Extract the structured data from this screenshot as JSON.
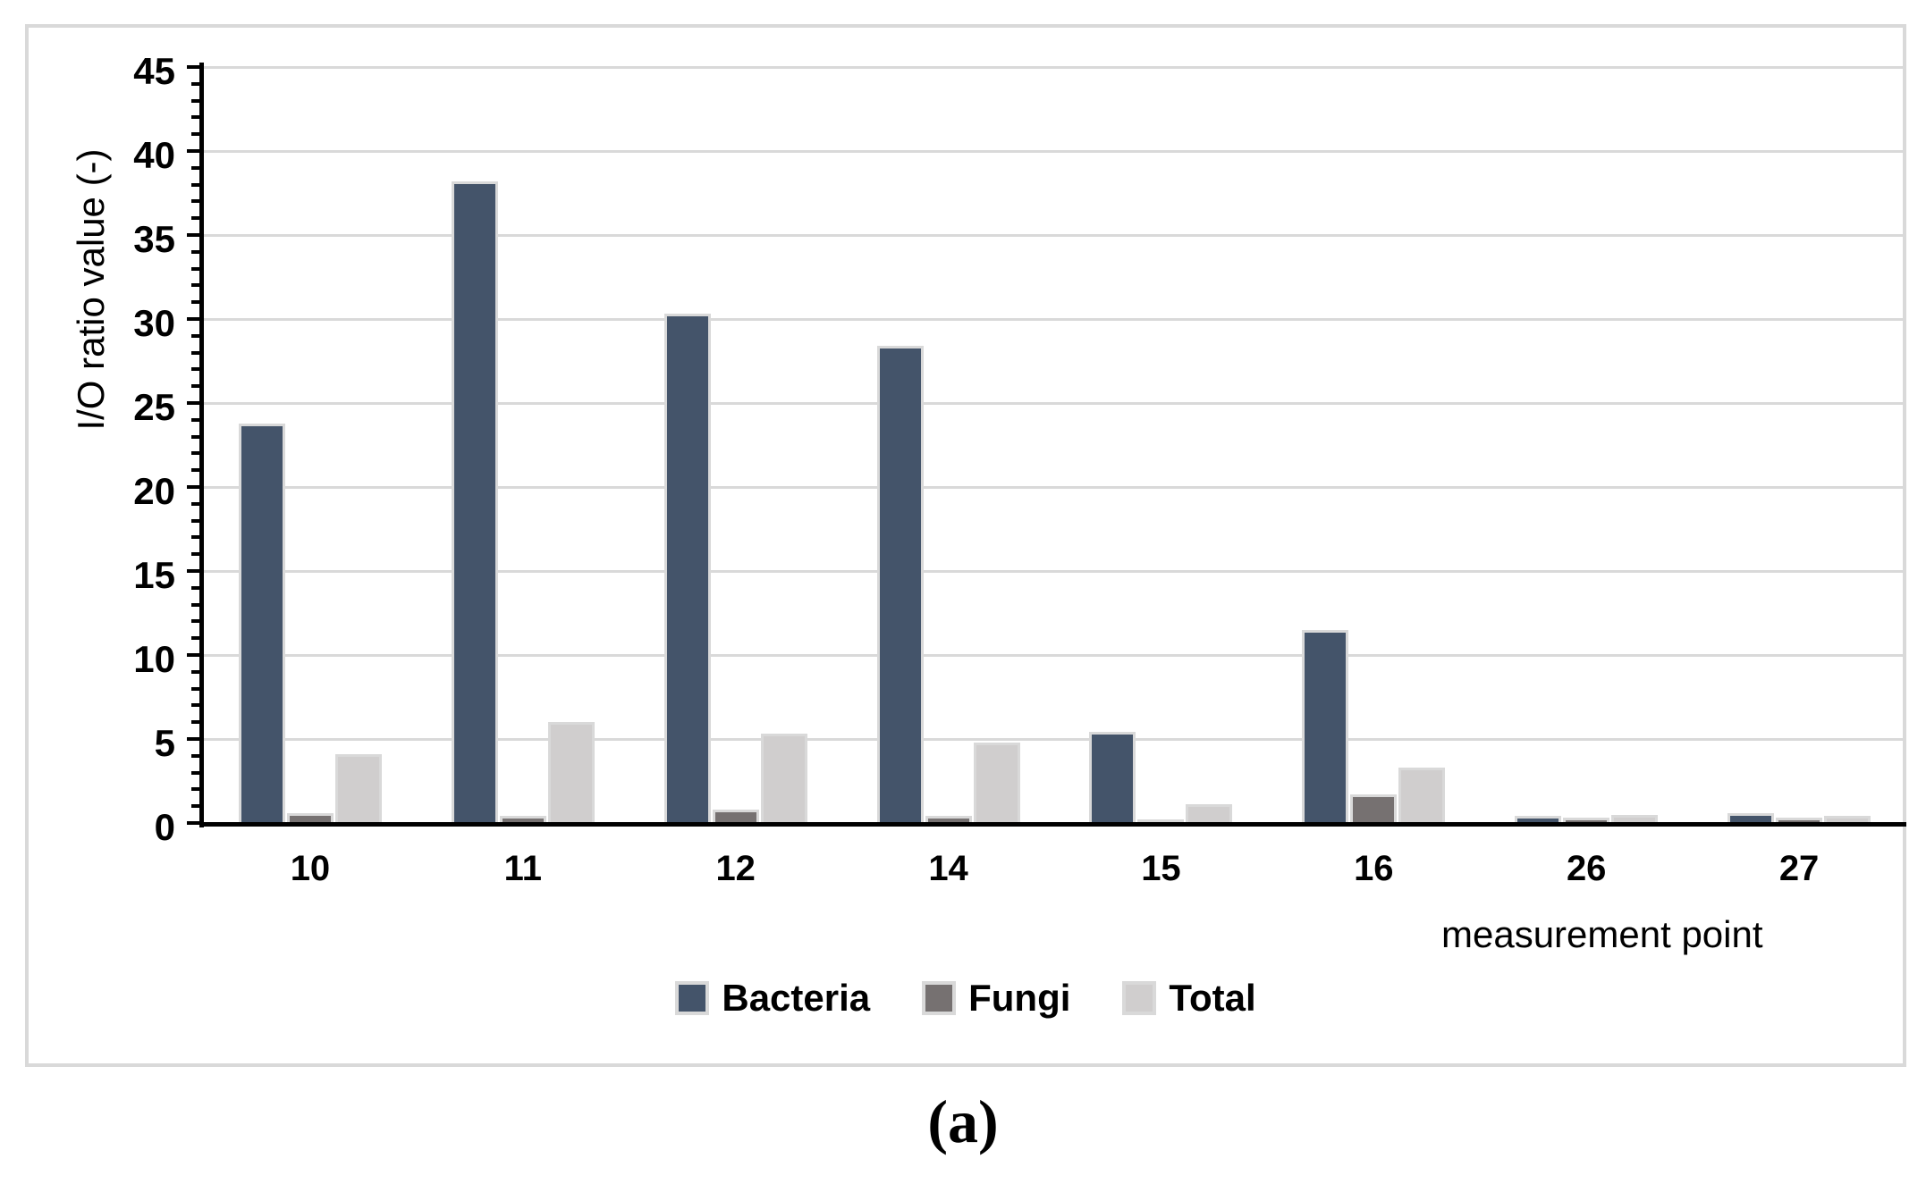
{
  "caption": "(a)",
  "chart_data": {
    "type": "bar",
    "title": "",
    "xlabel": "measurement point",
    "ylabel": "I/O ratio value (-)",
    "categories": [
      "10",
      "11",
      "12",
      "14",
      "15",
      "16",
      "26",
      "27"
    ],
    "series": [
      {
        "name": "Bacteria",
        "color": "#44546A",
        "values": [
          23.8,
          38.2,
          30.3,
          28.4,
          5.4,
          11.5,
          0.4,
          0.6
        ]
      },
      {
        "name": "Fungi",
        "color": "#767171",
        "values": [
          0.6,
          0.4,
          0.8,
          0.4,
          0.2,
          1.7,
          0.3,
          0.3
        ]
      },
      {
        "name": "Total",
        "color": "#D0CECE",
        "values": [
          4.1,
          6.0,
          5.3,
          4.8,
          1.1,
          3.3,
          0.5,
          0.4
        ]
      }
    ],
    "ylim": [
      0,
      45
    ],
    "yticks": [
      0,
      5,
      10,
      15,
      20,
      25,
      30,
      35,
      40,
      45
    ],
    "minor_tick_step": 1,
    "grid": true,
    "legend_position": "bottom",
    "gridline_color": "#D9D9D9",
    "bar_border_color": "#D9D9D9",
    "axis_color": "#000000"
  }
}
